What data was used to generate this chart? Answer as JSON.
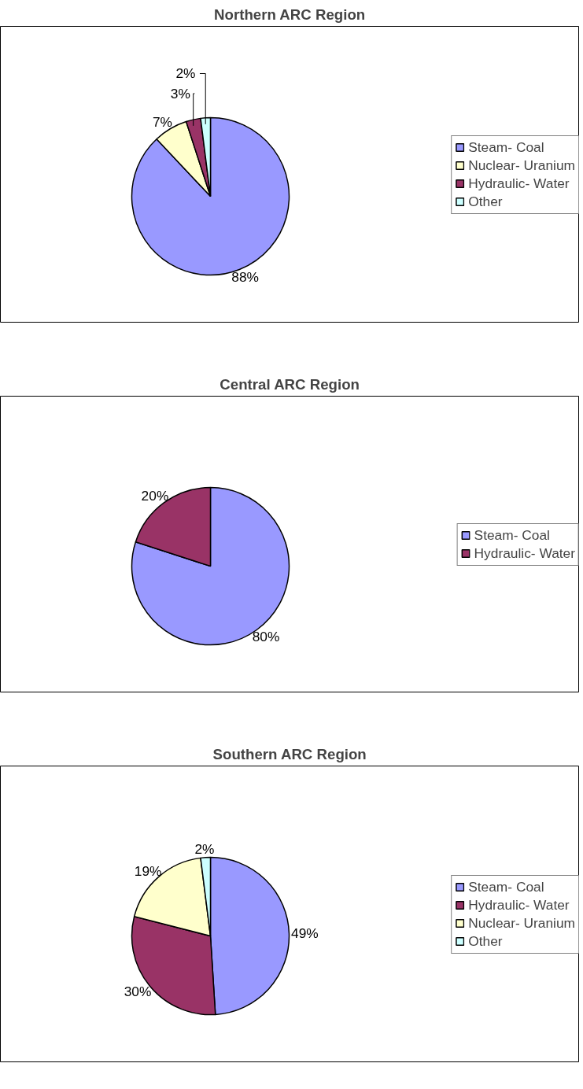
{
  "chart_data": [
    {
      "type": "pie",
      "title": "Northern ARC Region",
      "categories": [
        "Steam- Coal",
        "Nuclear- Uranium",
        "Hydraulic- Water",
        "Other"
      ],
      "values": [
        88,
        7,
        3,
        2
      ],
      "colors": [
        "#9999ff",
        "#ffffcc",
        "#993366",
        "#ccffff"
      ],
      "value_labels": [
        "88%",
        "7%",
        "3%",
        "2%"
      ],
      "legend": "right"
    },
    {
      "type": "pie",
      "title": "Central ARC Region",
      "categories": [
        "Steam- Coal",
        "Hydraulic- Water"
      ],
      "values": [
        80,
        20
      ],
      "colors": [
        "#9999ff",
        "#993366"
      ],
      "value_labels": [
        "80%",
        "20%"
      ],
      "legend": "right"
    },
    {
      "type": "pie",
      "title": "Southern ARC Region",
      "categories": [
        "Steam- Coal",
        "Hydraulic- Water",
        "Nuclear- Uranium",
        "Other"
      ],
      "values": [
        49,
        30,
        19,
        2
      ],
      "colors": [
        "#9999ff",
        "#993366",
        "#ffffcc",
        "#ccffff"
      ],
      "value_labels": [
        "49%",
        "30%",
        "19%",
        "2%"
      ],
      "legend": "right"
    }
  ]
}
